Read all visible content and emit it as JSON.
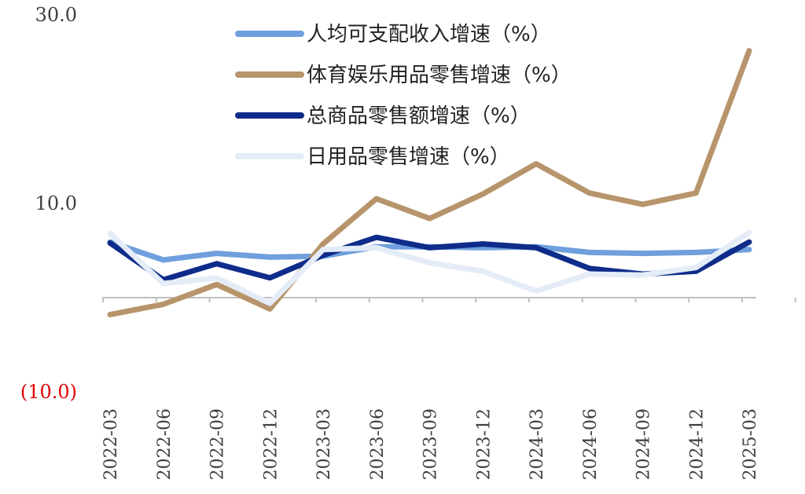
{
  "chart_data": {
    "type": "line",
    "x": [
      "2022-03",
      "2022-06",
      "2022-09",
      "2022-12",
      "2023-03",
      "2023-06",
      "2023-09",
      "2023-12",
      "2024-03",
      "2024-06",
      "2024-09",
      "2024-12",
      "2025-03"
    ],
    "y_ticks": [
      {
        "value": 30,
        "label": "30.0",
        "color": "#404040"
      },
      {
        "value": 10,
        "label": "10.0",
        "color": "#404040"
      },
      {
        "value": -10,
        "label": "(10.0)",
        "color": "#e00000"
      }
    ],
    "ylim": [
      -10,
      30
    ],
    "legend_position": "top-center",
    "series": [
      {
        "name": "人均可支配收入增速（%）",
        "color": "#6f9fdc",
        "values": [
          5.9,
          4.0,
          4.7,
          4.3,
          4.4,
          5.4,
          5.4,
          5.3,
          5.4,
          4.8,
          4.7,
          4.8,
          5.1
        ]
      },
      {
        "name": "体育娱乐用品零售增速（%）",
        "color": "#b7946b",
        "values": [
          -1.8,
          -0.7,
          1.4,
          -1.2,
          5.7,
          10.5,
          8.4,
          11.0,
          14.2,
          11.1,
          9.9,
          11.1,
          26.2
        ]
      },
      {
        "name": "总商品零售额增速（%）",
        "color": "#0f2c8a",
        "values": [
          5.8,
          1.9,
          3.6,
          2.1,
          4.5,
          6.4,
          5.3,
          5.7,
          5.3,
          3.1,
          2.5,
          2.8,
          5.9
        ]
      },
      {
        "name": "日用品零售增速（%）",
        "color": "#e4ecf7",
        "values": [
          6.8,
          1.5,
          2.1,
          -0.6,
          5.1,
          5.3,
          3.7,
          2.8,
          0.7,
          2.5,
          2.4,
          3.2,
          6.9
        ]
      }
    ]
  }
}
